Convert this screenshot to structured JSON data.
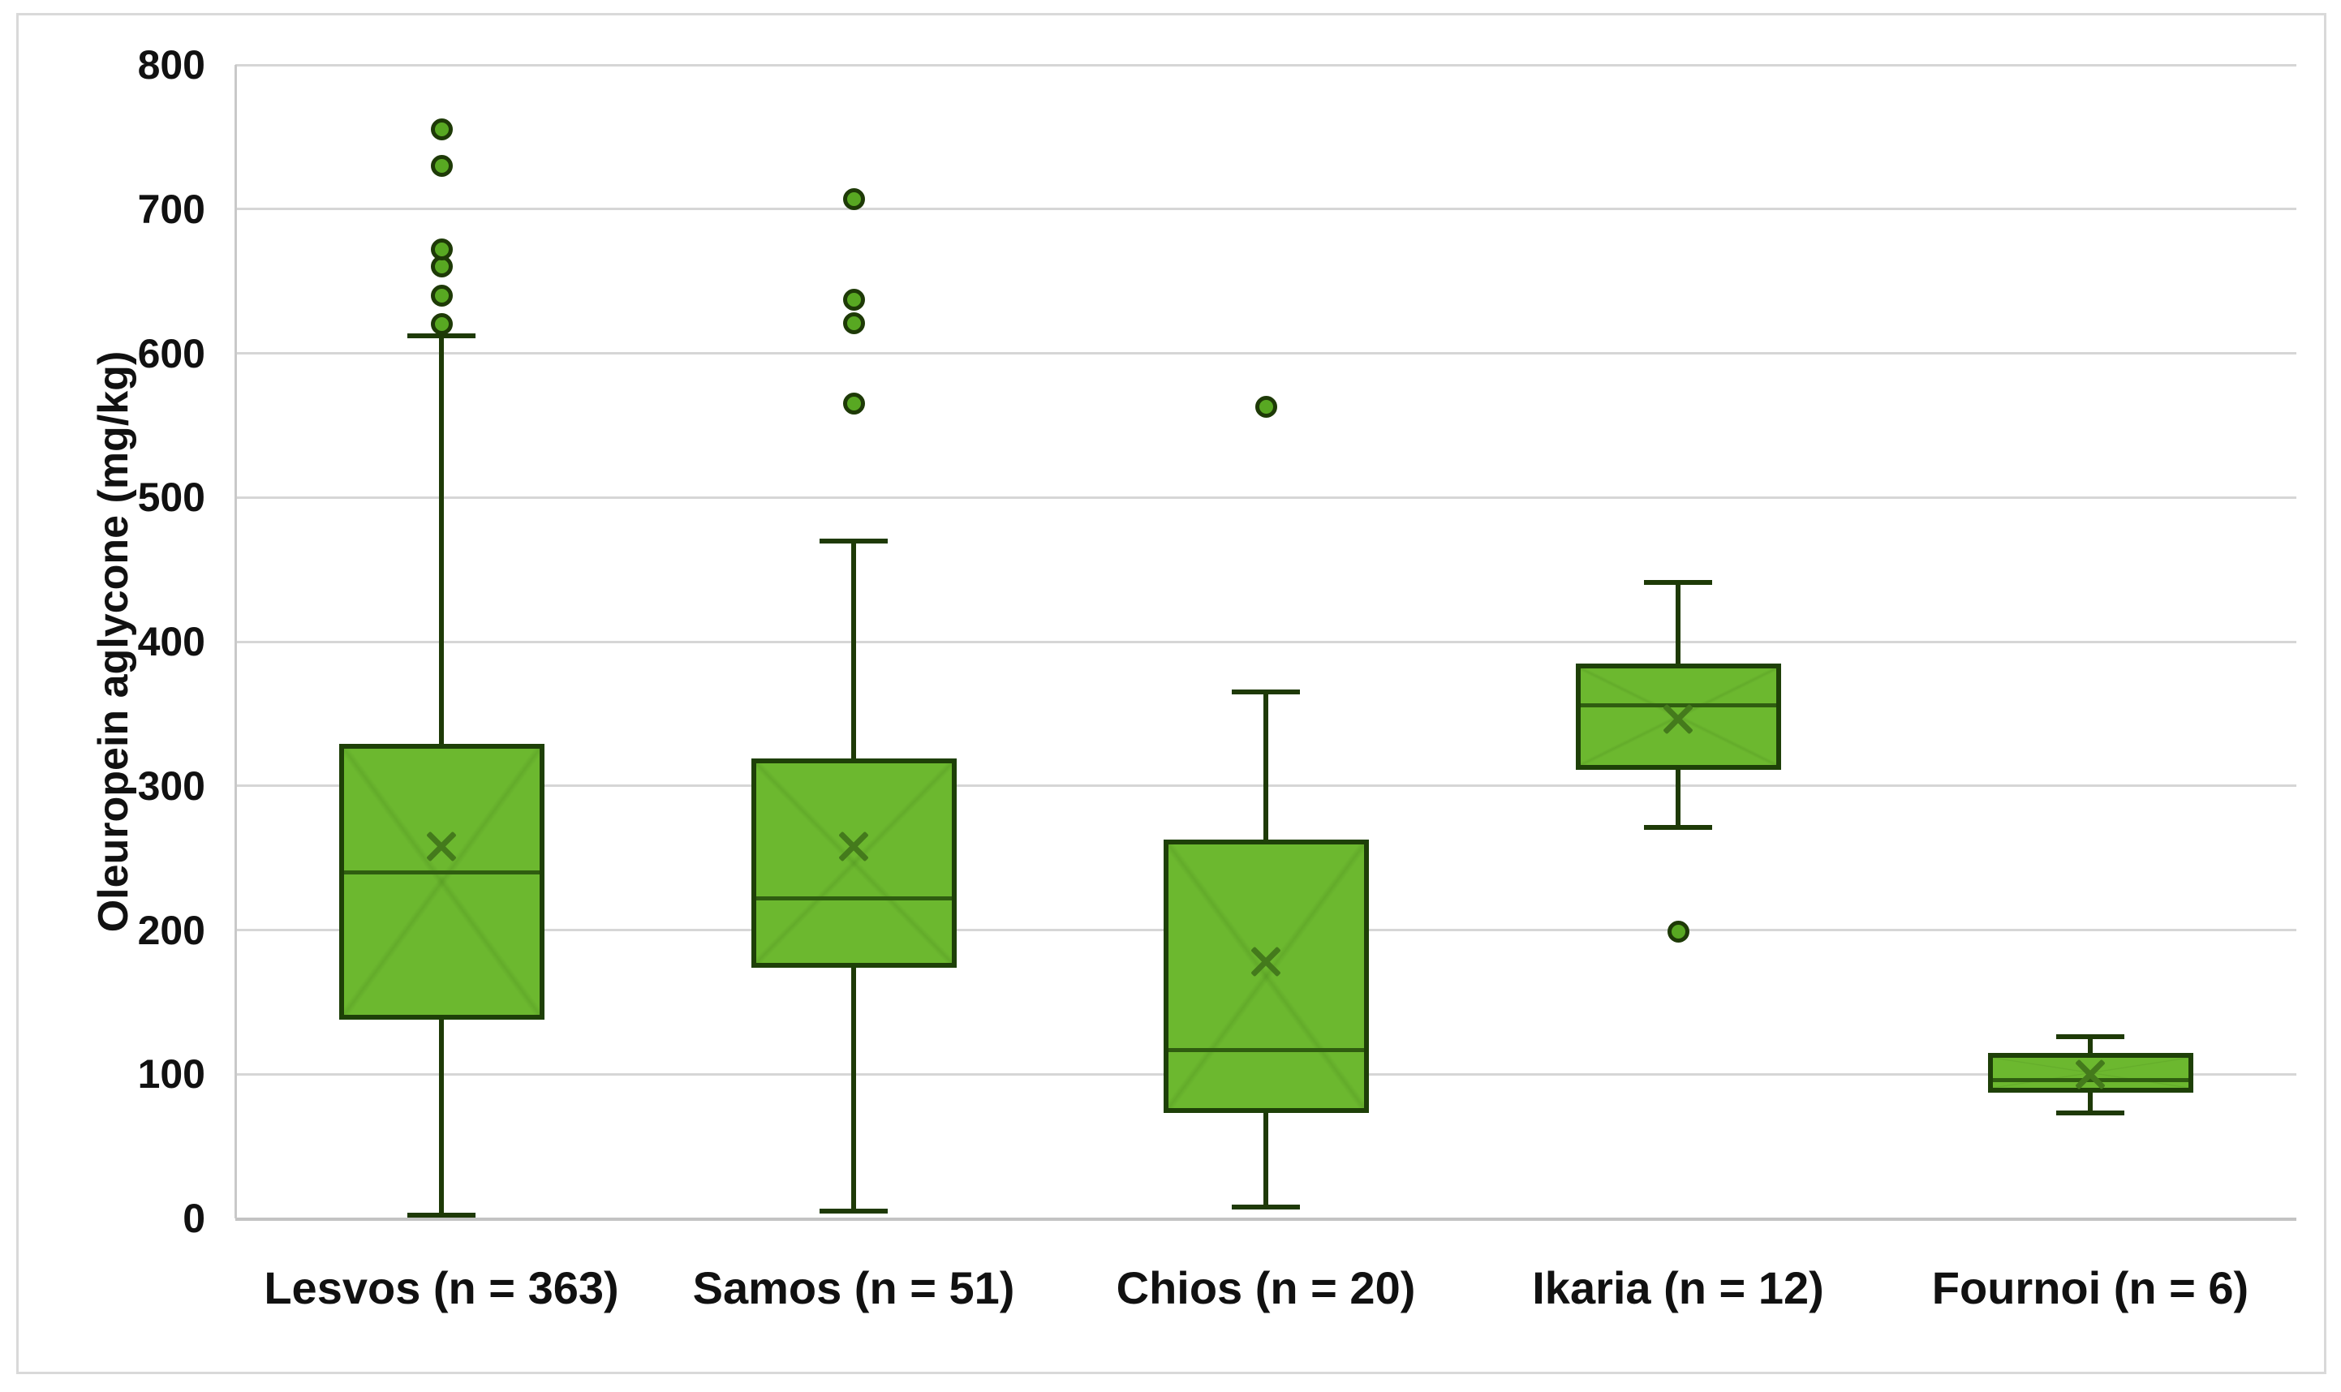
{
  "chart_data": {
    "type": "box",
    "title": "",
    "ylabel": "Oleuropein aglycone (mg/kg)",
    "xlabel": "",
    "ylim": [
      0,
      800
    ],
    "ytick_step": 100,
    "yticks": [
      0,
      100,
      200,
      300,
      400,
      500,
      600,
      700,
      800
    ],
    "grid": "horizontal",
    "legend": "none",
    "categories": [
      "Lesvos (n = 363)",
      "Samos (n = 51)",
      "Chios (n = 20)",
      "Ikaria (n = 12)",
      "Fournoi (n = 6)"
    ],
    "series": [
      {
        "name": "Lesvos (n = 363)",
        "whisker_low": 2,
        "q1": 138,
        "median": 240,
        "q3": 329,
        "whisker_high": 612,
        "mean": 258,
        "outliers": [
          620,
          640,
          660,
          672,
          730,
          755
        ]
      },
      {
        "name": "Samos (n = 51)",
        "whisker_low": 5,
        "q1": 174,
        "median": 222,
        "q3": 319,
        "whisker_high": 470,
        "mean": 258,
        "outliers": [
          565,
          621,
          637,
          707
        ]
      },
      {
        "name": "Chios (n = 20)",
        "whisker_low": 8,
        "q1": 73,
        "median": 117,
        "q3": 263,
        "whisker_high": 365,
        "mean": 178,
        "outliers": [
          563
        ]
      },
      {
        "name": "Ikaria (n = 12)",
        "whisker_low": 271,
        "q1": 311,
        "median": 356,
        "q3": 385,
        "whisker_high": 441,
        "mean": 346,
        "outliers": [
          199
        ]
      },
      {
        "name": "Fournoi (n = 6)",
        "whisker_low": 73,
        "q1": 87,
        "median": 96,
        "q3": 115,
        "whisker_high": 126,
        "mean": 100,
        "outliers": []
      }
    ],
    "colors": {
      "box_fill": "#6cb82f",
      "box_border": "#1e4008",
      "whisker": "#1e3a07",
      "median_line": "#2f5d10",
      "mean_marker": "#447a1c",
      "outlier_fill": "#58a822",
      "outlier_border": "#1e3a07",
      "gridline": "#d6d6d6",
      "axis_line": "#c9c9c9",
      "text": "#111111",
      "frame": "#d9d9d9",
      "background": "#ffffff"
    }
  }
}
